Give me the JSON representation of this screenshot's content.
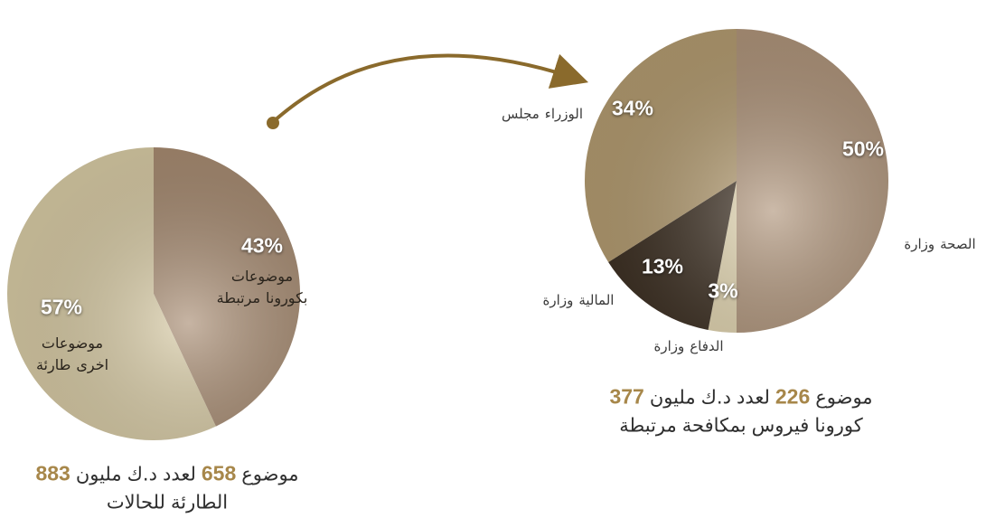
{
  "chart_data": [
    {
      "type": "pie",
      "categories": [
        [
          [
            "موضوعات"
          ],
          [
            "مرتبطة",
            "بكورونا"
          ]
        ],
        [
          [
            "موضوعات"
          ],
          [
            "طارئة",
            "اخرى"
          ]
        ]
      ],
      "values": [
        43,
        57
      ],
      "value_labels": [
        "43%",
        "57%"
      ],
      "colors": [
        "#a88c72",
        "#d9cca6"
      ],
      "caption": [
        [
          883,
          "مليون",
          "د.ك",
          "لعدد",
          658,
          "موضوع"
        ],
        [
          "للحالات",
          "الطارئة"
        ]
      ]
    },
    {
      "type": "pie",
      "categories": [
        [
          [
            "وزارة",
            "الصحة"
          ]
        ],
        [
          [
            "وزارة",
            "الدفاع"
          ]
        ],
        [
          [
            "وزارة",
            "المالية"
          ]
        ],
        [
          [
            "مجلس",
            "الوزراء"
          ]
        ]
      ],
      "values": [
        50,
        3,
        13,
        34
      ],
      "value_labels": [
        "50%",
        "3%",
        "13%",
        "34%"
      ],
      "colors": [
        "#b0957b",
        "#e2d5b0",
        "#3d3023",
        "#b49c71"
      ],
      "caption": [
        [
          377,
          "مليون",
          "د.ك",
          "لعدد",
          226,
          "موضوع"
        ],
        [
          "مرتبطة",
          "بمكافحة",
          "فيروس",
          "كورونا"
        ]
      ]
    }
  ]
}
